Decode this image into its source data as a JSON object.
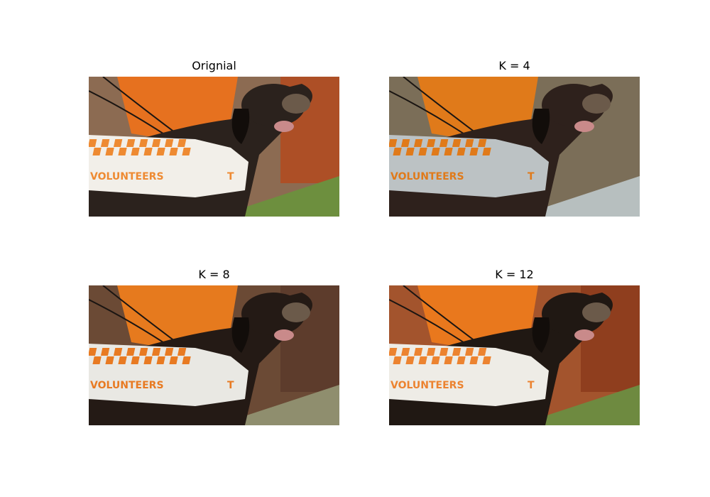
{
  "panels": [
    {
      "title": "Orignial",
      "image": "image-original",
      "vest_text": "VOLUNTEERS",
      "palette": {
        "sky": "#b34a1e",
        "flag": "#e6711f",
        "grass": "#6d8f3e",
        "fur": "#2b221d",
        "vest": "#f2efe9",
        "check": "#ee8a32",
        "bg_mid": "#8c6b52"
      }
    },
    {
      "title": "K = 4",
      "image": "image-k4",
      "vest_text": "VOLUNTEERS",
      "palette": {
        "sky": "#7b6e58",
        "flag": "#e07a1a",
        "grass": "#b7bfbf",
        "fur": "#2e211c",
        "vest": "#bcc2c4",
        "check": "#e07a1a",
        "bg_mid": "#7b6e58"
      }
    },
    {
      "title": "K = 8",
      "image": "image-k8",
      "vest_text": "VOLUNTEERS",
      "palette": {
        "sky": "#5a3a2a",
        "flag": "#e67a1e",
        "grass": "#8f8e6e",
        "fur": "#241a15",
        "vest": "#e9e8e3",
        "check": "#e87a22",
        "bg_mid": "#6b4a35"
      }
    },
    {
      "title": "K = 12",
      "image": "image-k12",
      "vest_text": "VOLUNTEERS",
      "palette": {
        "sky": "#8c3b1c",
        "flag": "#e9781d",
        "grass": "#6e8a40",
        "fur": "#201813",
        "vest": "#eeece6",
        "check": "#ec8330",
        "bg_mid": "#a3542d"
      }
    }
  ]
}
